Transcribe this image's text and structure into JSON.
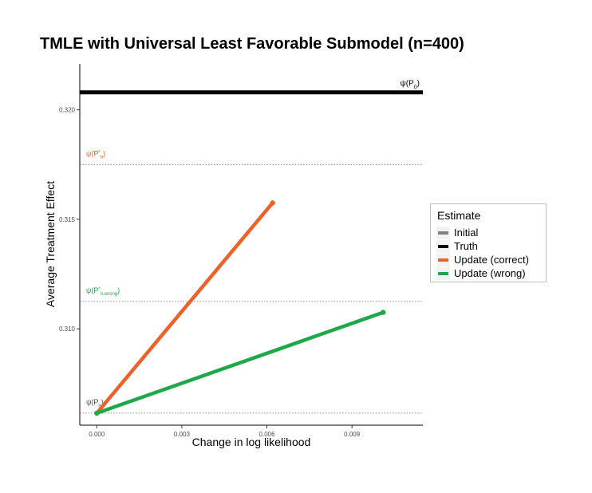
{
  "chart_data": {
    "type": "line",
    "title": "TMLE with Universal Least Favorable Submodel (n=400)",
    "xlabel": "Change in log likelihood",
    "ylabel": "Average Treatment Effect",
    "xlim": [
      -0.0006,
      0.0115
    ],
    "ylim": [
      0.3056,
      0.3221
    ],
    "x_ticks": [
      {
        "value": 0.0,
        "label": "0.000"
      },
      {
        "value": 0.003,
        "label": "0.003"
      },
      {
        "value": 0.006,
        "label": "0.006"
      },
      {
        "value": 0.009,
        "label": "0.009"
      }
    ],
    "y_ticks": [
      {
        "value": 0.31,
        "label": "0.310"
      },
      {
        "value": 0.315,
        "label": "0.315"
      },
      {
        "value": 0.32,
        "label": "0.320"
      }
    ],
    "grid": false,
    "legend": {
      "title": "Estimate",
      "placement": "right",
      "entries": [
        {
          "label": "Initial",
          "color": "#7f7f7f"
        },
        {
          "label": "Truth",
          "color": "#000000"
        },
        {
          "label": "Update (correct)",
          "color": "#ee6129"
        },
        {
          "label": "Update (wrong)",
          "color": "#1fa84a"
        }
      ]
    },
    "series": [
      {
        "name": "Truth",
        "color": "#000000",
        "x": [
          -0.0006,
          0.0115
        ],
        "y": [
          0.3208,
          0.3208
        ]
      },
      {
        "name": "Update (correct)",
        "color": "#ee6129",
        "x": [
          0.0,
          0.0062
        ],
        "y": [
          0.30615,
          0.31575
        ]
      },
      {
        "name": "Update (wrong)",
        "color": "#1fa84a",
        "x": [
          0.0,
          0.0101
        ],
        "y": [
          0.30615,
          0.31075
        ]
      }
    ],
    "reference_lines": [
      {
        "y": 0.3175,
        "label_main": "ψ(P",
        "label_sub": "n",
        "label_sup": "*",
        "label_tail": ")",
        "color": "#ee6129"
      },
      {
        "y": 0.31125,
        "label_main": "ψ(P",
        "label_sub": "n,wrong",
        "label_sup": "*",
        "label_tail": ")",
        "color": "#1fa84a"
      },
      {
        "y": 0.30615,
        "label_main": "ψ(P",
        "label_sub": "n",
        "label_sup": "",
        "label_tail": ")",
        "color": "#4d4d4d"
      }
    ],
    "truth_label": {
      "main": "ψ(P",
      "sub": "0",
      "tail": ")"
    }
  }
}
